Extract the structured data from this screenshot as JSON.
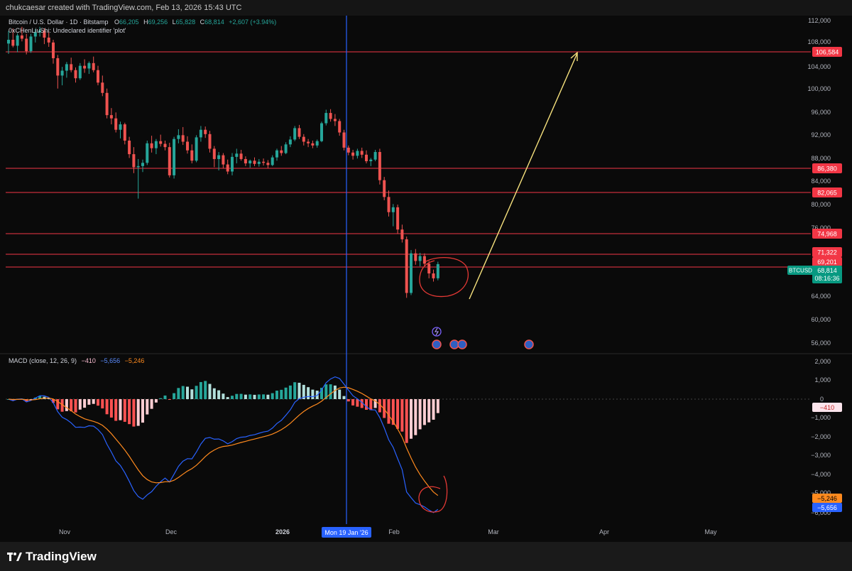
{
  "header": {
    "attribution": "chukcaesar created with TradingView.com, Feb 13, 2026 15:43 UTC"
  },
  "legend": {
    "symbol": "Bitcoin / U.S. Dollar · 1D · Bitstamp",
    "ohlc": [
      {
        "k": "O",
        "v": "66,205"
      },
      {
        "k": "H",
        "v": "69,256"
      },
      {
        "k": "L",
        "v": "65,828"
      },
      {
        "k": "C",
        "v": "68,814"
      }
    ],
    "change": "+2,607 (+3.94%)",
    "indicator": "0xCHenLiuShi: Undeclared identifier 'plot'"
  },
  "macd": {
    "title": "MACD (close, 12, 26, 9)",
    "hist_value": "−410",
    "macd_value": "−5,656",
    "signal_value": "−5,246"
  },
  "price_axis": {
    "ticks": [
      "112,000",
      "108,000",
      "104,000",
      "100,000",
      "96,000",
      "92,000",
      "88,000",
      "84,000",
      "80,000",
      "76,000",
      "64,000",
      "60,000",
      "56,000"
    ],
    "current_symbol": "BTCUSD",
    "current_price": "68,814",
    "countdown": "08:16:36"
  },
  "levels": [
    "106,584",
    "86,380",
    "82,065",
    "74,968",
    "71,322",
    "69,201"
  ],
  "macd_axis": {
    "ticks": [
      "2,000",
      "1,000",
      "0",
      "−1,000",
      "−2,000",
      "−3,000",
      "−4,000",
      "−5,000",
      "−6,000"
    ],
    "hist_label": "−410",
    "signal_label": "−5,246",
    "macd_label": "−5,656"
  },
  "time_axis": {
    "labels": [
      "Nov",
      "Dec",
      "2026",
      "Feb",
      "Mar",
      "Apr",
      "May"
    ],
    "crosshair_label": "Mon 19 Jan '26"
  },
  "footer": {
    "brand": "TradingView"
  },
  "colors": {
    "up": "#26a69a",
    "down": "#ef5350",
    "level": "#f23645",
    "arrow": "#f7e27d",
    "macd": "#2962ff",
    "signal": "#ff8a1e",
    "crosshair": "#2962ff"
  },
  "chart_data": {
    "type": "candlestick",
    "title": "Bitcoin / U.S. Dollar · 1D · Bitstamp",
    "start_date": "2025-10-21",
    "ylim": [
      54000,
      114000
    ],
    "candles": [
      [
        109500,
        111800,
        107600,
        110200
      ],
      [
        110200,
        112300,
        108800,
        109100
      ],
      [
        109100,
        111400,
        107900,
        111000
      ],
      [
        111000,
        112600,
        109900,
        110400
      ],
      [
        110400,
        111300,
        107500,
        108100
      ],
      [
        108100,
        111300,
        107800,
        110800
      ],
      [
        110800,
        112200,
        109700,
        111600
      ],
      [
        111600,
        112600,
        110800,
        111900
      ],
      [
        111900,
        112300,
        109400,
        110600
      ],
      [
        110600,
        111800,
        108900,
        109700
      ],
      [
        109700,
        110200,
        105800,
        106800
      ],
      [
        106800,
        107400,
        101200,
        103600
      ],
      [
        103600,
        105200,
        101800,
        104500
      ],
      [
        104500,
        106100,
        103200,
        105700
      ],
      [
        105700,
        106900,
        104200,
        104600
      ],
      [
        104600,
        105100,
        102300,
        103100
      ],
      [
        103100,
        105900,
        102800,
        105400
      ],
      [
        105400,
        106600,
        104100,
        104900
      ],
      [
        104900,
        106200,
        103900,
        105900
      ],
      [
        105900,
        107100,
        104200,
        104600
      ],
      [
        104600,
        105400,
        101800,
        102300
      ],
      [
        102300,
        103600,
        99800,
        100400
      ],
      [
        100400,
        101200,
        95700,
        96300
      ],
      [
        96300,
        97600,
        94600,
        95700
      ],
      [
        95700,
        96800,
        93100,
        93600
      ],
      [
        93600,
        95100,
        92000,
        94600
      ],
      [
        94600,
        94900,
        90900,
        91600
      ],
      [
        91600,
        92300,
        88400,
        89100
      ],
      [
        89100,
        90400,
        85600,
        86700
      ],
      [
        86700,
        88200,
        80900,
        86900
      ],
      [
        86900,
        88100,
        85800,
        87500
      ],
      [
        87500,
        91600,
        87100,
        91100
      ],
      [
        91100,
        92500,
        89400,
        90200
      ],
      [
        90200,
        91900,
        89100,
        91500
      ],
      [
        91500,
        92700,
        90500,
        91000
      ],
      [
        91000,
        91600,
        89800,
        90400
      ],
      [
        90400,
        91200,
        84800,
        85200
      ],
      [
        85200,
        92300,
        84600,
        91900
      ],
      [
        91900,
        93700,
        91100,
        92600
      ],
      [
        92600,
        94100,
        90800,
        91400
      ],
      [
        91400,
        92400,
        89200,
        89800
      ],
      [
        89800,
        90900,
        87400,
        87900
      ],
      [
        87900,
        92600,
        87600,
        92200
      ],
      [
        92200,
        94300,
        91400,
        93600
      ],
      [
        93600,
        94200,
        92100,
        92800
      ],
      [
        92800,
        93400,
        89400,
        90100
      ],
      [
        90100,
        90600,
        86700,
        88200
      ],
      [
        88200,
        89500,
        86100,
        88900
      ],
      [
        88900,
        89300,
        86500,
        87200
      ],
      [
        87200,
        88100,
        85400,
        85900
      ],
      [
        85900,
        89300,
        85200,
        88600
      ],
      [
        88600,
        90100,
        87400,
        89200
      ],
      [
        89200,
        89900,
        87900,
        88200
      ],
      [
        88200,
        88700,
        86900,
        87400
      ],
      [
        87400,
        88100,
        86600,
        87900
      ],
      [
        87900,
        88500,
        86900,
        87300
      ],
      [
        87300,
        88200,
        86800,
        87700
      ],
      [
        87700,
        88300,
        87000,
        87500
      ],
      [
        87500,
        88000,
        86500,
        87100
      ],
      [
        87100,
        88900,
        86900,
        88500
      ],
      [
        88500,
        90100,
        87900,
        89800
      ],
      [
        89800,
        90600,
        88800,
        89300
      ],
      [
        89300,
        91300,
        89100,
        90900
      ],
      [
        90900,
        92400,
        90400,
        91800
      ],
      [
        91800,
        94300,
        91500,
        93900
      ],
      [
        93900,
        94500,
        91900,
        92300
      ],
      [
        92300,
        92800,
        90700,
        91400
      ],
      [
        91400,
        91900,
        90400,
        91100
      ],
      [
        91100,
        91600,
        90200,
        90700
      ],
      [
        90700,
        91800,
        90300,
        91500
      ],
      [
        91500,
        95100,
        91300,
        94800
      ],
      [
        94800,
        97300,
        94400,
        96700
      ],
      [
        96700,
        97400,
        95100,
        95600
      ],
      [
        95600,
        96500,
        94300,
        95200
      ],
      [
        95200,
        95600,
        92500,
        93100
      ],
      [
        93100,
        93600,
        89800,
        90300
      ],
      [
        90300,
        90700,
        88900,
        89400
      ],
      [
        89400,
        89900,
        88100,
        88800
      ],
      [
        88800,
        90100,
        88300,
        89700
      ],
      [
        89700,
        90300,
        88400,
        89000
      ],
      [
        89000,
        89800,
        87400,
        87800
      ],
      [
        87800,
        88400,
        86900,
        88100
      ],
      [
        88100,
        89900,
        87800,
        89500
      ],
      [
        89500,
        90100,
        83500,
        84300
      ],
      [
        84300,
        84900,
        80600,
        81200
      ],
      [
        81200,
        82400,
        77600,
        78400
      ],
      [
        78400,
        79900,
        75800,
        79300
      ],
      [
        79300,
        79800,
        74400,
        75200
      ],
      [
        75200,
        76100,
        72800,
        73400
      ],
      [
        73400,
        73900,
        62600,
        63500
      ],
      [
        63500,
        71400,
        63100,
        70800
      ],
      [
        70800,
        71600,
        68700,
        69400
      ],
      [
        69400,
        70900,
        68400,
        70300
      ],
      [
        70300,
        70800,
        68400,
        68900
      ],
      [
        68900,
        69400,
        66200,
        67100
      ],
      [
        67100,
        67800,
        65600,
        66200
      ],
      [
        66205,
        69256,
        65828,
        68814
      ]
    ]
  }
}
